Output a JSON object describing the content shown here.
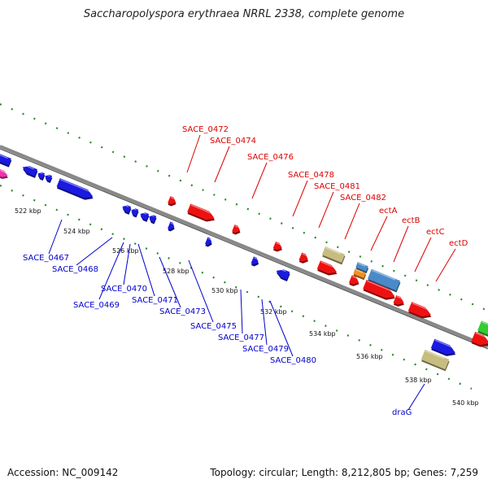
{
  "title": "Saccharopolyspora erythraea NRRL 2338, complete genome",
  "footer": {
    "accession": "Accession: NC_009142",
    "summary": "Topology: circular; Length: 8,212,805 bp; Genes: 7,259"
  },
  "colors": {
    "forward_label": "#dd0000",
    "reverse_label": "#0000cc",
    "backbone": "#888888",
    "tick_dots": "#2a8a2a",
    "red_gene": "#ee1111",
    "blue_gene": "#1a1ae0",
    "olive_gene": "#c8bd80",
    "steelblue_gene": "#4a8ac8",
    "orange_gene": "#f09020",
    "green_gene": "#33cc33",
    "magenta_gene": "#ee33aa"
  },
  "scale_labels": [
    "522 kbp",
    "524 kbp",
    "526 kbp",
    "528 kbp",
    "530 kbp",
    "532 kbp",
    "534 kbp",
    "536 kbp",
    "538 kbp",
    "540 kbp"
  ],
  "forward_genes": [
    "SACE_0472",
    "SACE_0474",
    "SACE_0476",
    "SACE_0478",
    "SACE_0481",
    "SACE_0482",
    "ectA",
    "ectB",
    "ectC",
    "ectD"
  ],
  "reverse_genes": [
    "SACE_0467",
    "SACE_0468",
    "SACE_0469",
    "SACE_0470",
    "SACE_0471",
    "SACE_0473",
    "SACE_0475",
    "SACE_0477",
    "SACE_0479",
    "SACE_0480",
    "draG"
  ]
}
